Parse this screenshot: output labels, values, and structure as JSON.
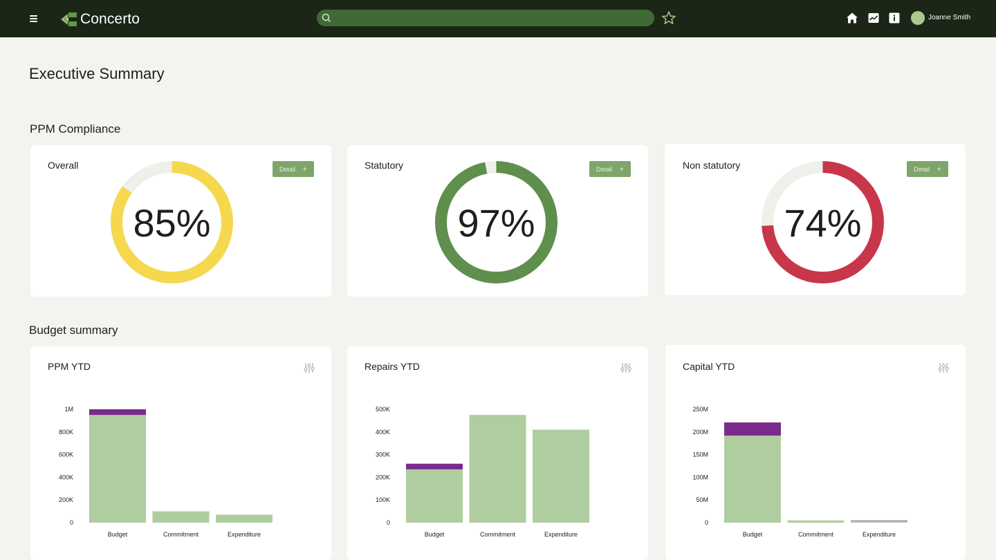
{
  "header": {
    "app_name": "Concerto",
    "search": {
      "value": "",
      "placeholder": ""
    },
    "user_name": "Joanne Smith",
    "icons": [
      "menu-icon",
      "logo-icon",
      "search-icon",
      "star-icon",
      "home-icon",
      "chart-icon",
      "info-icon",
      "avatar"
    ]
  },
  "page": {
    "title": "Executive Summary",
    "compliance_section_title": "PPM Compliance",
    "budget_section_title": "Budget summary"
  },
  "colors": {
    "topbar": "#1b2616",
    "overall": "#f5d84e",
    "statutory": "#5f8f4c",
    "non_statutory": "#c8364a",
    "track": "#eef0ea",
    "bar_main": "#b0cda0",
    "bar_top": "#7b2b8c",
    "button": "#7fa56b"
  },
  "compliance": [
    {
      "title": "Overall",
      "value_label": "85%",
      "value": 85,
      "color": "#f5d84e",
      "detail_label": "Detail",
      "detail_plus": "+"
    },
    {
      "title": "Statutory",
      "value_label": "97%",
      "value": 97,
      "color": "#5f8f4c",
      "detail_label": "Detail",
      "detail_plus": "+"
    },
    {
      "title": "Non statutory",
      "value_label": "74%",
      "value": 74,
      "color": "#c8364a",
      "detail_label": "Detail",
      "detail_plus": "+"
    }
  ],
  "budget": [
    {
      "title": "PPM YTD",
      "filter_icon": "sliders-icon"
    },
    {
      "title": "Repairs YTD",
      "filter_icon": "sliders-icon"
    },
    {
      "title": "Capital YTD",
      "filter_icon": "sliders-icon"
    }
  ],
  "chart_data": [
    {
      "type": "bar",
      "stacked": true,
      "categories": [
        "Budget",
        "Commitment",
        "Expenditure"
      ],
      "series": [
        {
          "values": [
            950000,
            100000,
            70000
          ],
          "color": "#b0cda0"
        },
        {
          "values": [
            50000,
            0,
            0
          ],
          "color": "#7b2b8c"
        }
      ],
      "y_ticks": [
        "1M",
        "800K",
        "600K",
        "400K",
        "200K",
        "0"
      ],
      "ylim": [
        0,
        1000000
      ],
      "grid": false
    },
    {
      "type": "bar",
      "stacked": true,
      "categories": [
        "Budget",
        "Commitment",
        "Expenditure"
      ],
      "series": [
        {
          "values": [
            235000,
            475000,
            410000
          ],
          "color": "#b0cda0"
        },
        {
          "values": [
            25000,
            0,
            0
          ],
          "color": "#7b2b8c"
        }
      ],
      "y_ticks": [
        "500K",
        "400K",
        "300K",
        "200K",
        "100K",
        "0"
      ],
      "ylim": [
        0,
        500000
      ],
      "grid": false
    },
    {
      "type": "bar",
      "stacked": true,
      "categories": [
        "Budget",
        "Commitment",
        "Expenditure"
      ],
      "series": [
        {
          "values": [
            192000000,
            5000000,
            4000000
          ],
          "color": "#b0cda0"
        },
        {
          "values": [
            29000000,
            0,
            1000000
          ],
          "color": "#7b2b8c"
        }
      ],
      "y_ticks": [
        "250M",
        "200M",
        "150M",
        "100M",
        "50M",
        "0"
      ],
      "ylim": [
        0,
        250000000
      ],
      "grid": false
    }
  ]
}
